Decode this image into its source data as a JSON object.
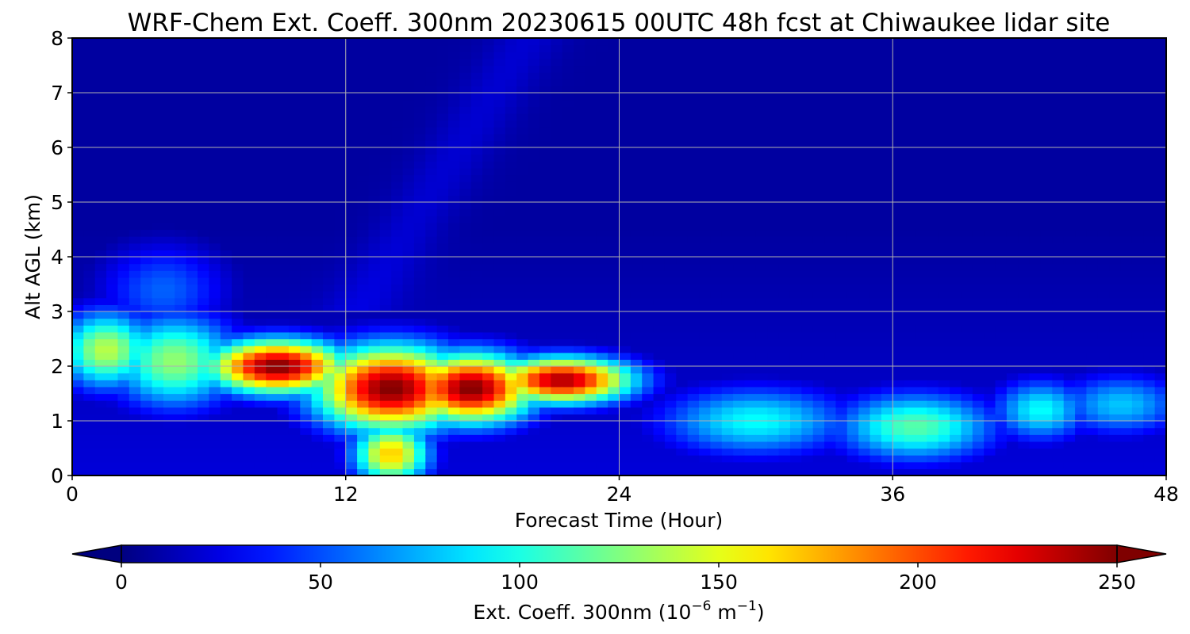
{
  "chart_data": {
    "type": "heatmap",
    "title": "WRF-Chem Ext. Coeff. 300nm  20230615 00UTC 48h fcst at Chiwaukee lidar site",
    "xlabel": "Forecast Time (Hour)",
    "ylabel": "Alt AGL (km)",
    "xlim": [
      0,
      48
    ],
    "ylim": [
      0,
      8
    ],
    "x_ticks": [
      "0",
      "12",
      "24",
      "36",
      "48"
    ],
    "y_ticks": [
      "0",
      "1",
      "2",
      "3",
      "4",
      "5",
      "6",
      "7",
      "8"
    ],
    "grid": true,
    "colormap": "jet",
    "colorbar": {
      "label_main": "Ext. Coeff. 300nm  (10",
      "label_exp1": "−6",
      "label_mid": " m",
      "label_exp2": "−1",
      "label_end": ")",
      "range": [
        0,
        250
      ],
      "ticks": [
        "0",
        "50",
        "100",
        "150",
        "200",
        "250"
      ],
      "extend": "both",
      "orientation": "horizontal",
      "placement": "bottom"
    },
    "field_features": [
      {
        "desc": "elevated aerosol layer core",
        "t": 9.0,
        "z": 2.0,
        "value": 250,
        "sigma_t": 2.2,
        "sigma_z": 0.35
      },
      {
        "t": 14.0,
        "z": 1.6,
        "value": 250,
        "sigma_t": 2.4,
        "sigma_z": 0.55
      },
      {
        "t": 17.5,
        "z": 1.6,
        "value": 250,
        "sigma_t": 2.0,
        "sigma_z": 0.45
      },
      {
        "t": 21.5,
        "z": 1.75,
        "value": 240,
        "sigma_t": 2.2,
        "sigma_z": 0.3
      },
      {
        "t": 14.0,
        "z": 0.4,
        "value": 170,
        "sigma_t": 1.2,
        "sigma_z": 0.4
      },
      {
        "t": 1.5,
        "z": 2.3,
        "value": 140,
        "sigma_t": 1.5,
        "sigma_z": 0.5
      },
      {
        "t": 4.5,
        "z": 2.1,
        "value": 130,
        "sigma_t": 2.0,
        "sigma_z": 0.6
      },
      {
        "t": 30.0,
        "z": 1.0,
        "value": 95,
        "sigma_t": 3.0,
        "sigma_z": 0.45
      },
      {
        "t": 37.0,
        "z": 0.9,
        "value": 115,
        "sigma_t": 2.5,
        "sigma_z": 0.45
      },
      {
        "t": 42.5,
        "z": 1.2,
        "value": 95,
        "sigma_t": 1.5,
        "sigma_z": 0.4
      },
      {
        "t": 46.0,
        "z": 1.3,
        "value": 80,
        "sigma_t": 2.0,
        "sigma_z": 0.4
      },
      {
        "t": 4.0,
        "z": 3.4,
        "value": 55,
        "sigma_t": 2.0,
        "sigma_z": 0.6
      }
    ]
  }
}
